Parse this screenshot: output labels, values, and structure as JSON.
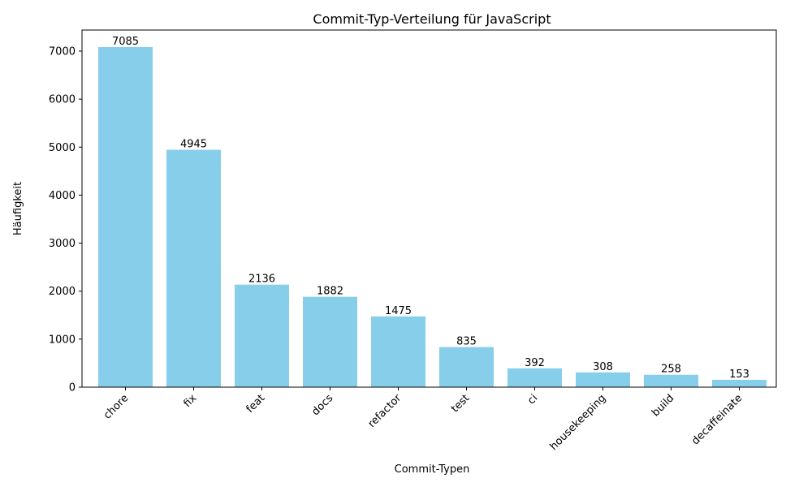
{
  "chart_data": {
    "type": "bar",
    "title": "Commit-Typ-Verteilung für JavaScript",
    "xlabel": "Commit-Typen",
    "ylabel": "Häufigkeit",
    "categories": [
      "chore",
      "fix",
      "feat",
      "docs",
      "refactor",
      "test",
      "ci",
      "housekeeping",
      "build",
      "decaffeinate"
    ],
    "values": [
      7085,
      4945,
      2136,
      1882,
      1475,
      835,
      392,
      308,
      258,
      153
    ],
    "ylim": [
      0,
      7439.25
    ],
    "yticks": [
      0,
      1000,
      2000,
      3000,
      4000,
      5000,
      6000,
      7000
    ],
    "grid": false,
    "legend": "none",
    "bar_color": "#87ceeb"
  }
}
